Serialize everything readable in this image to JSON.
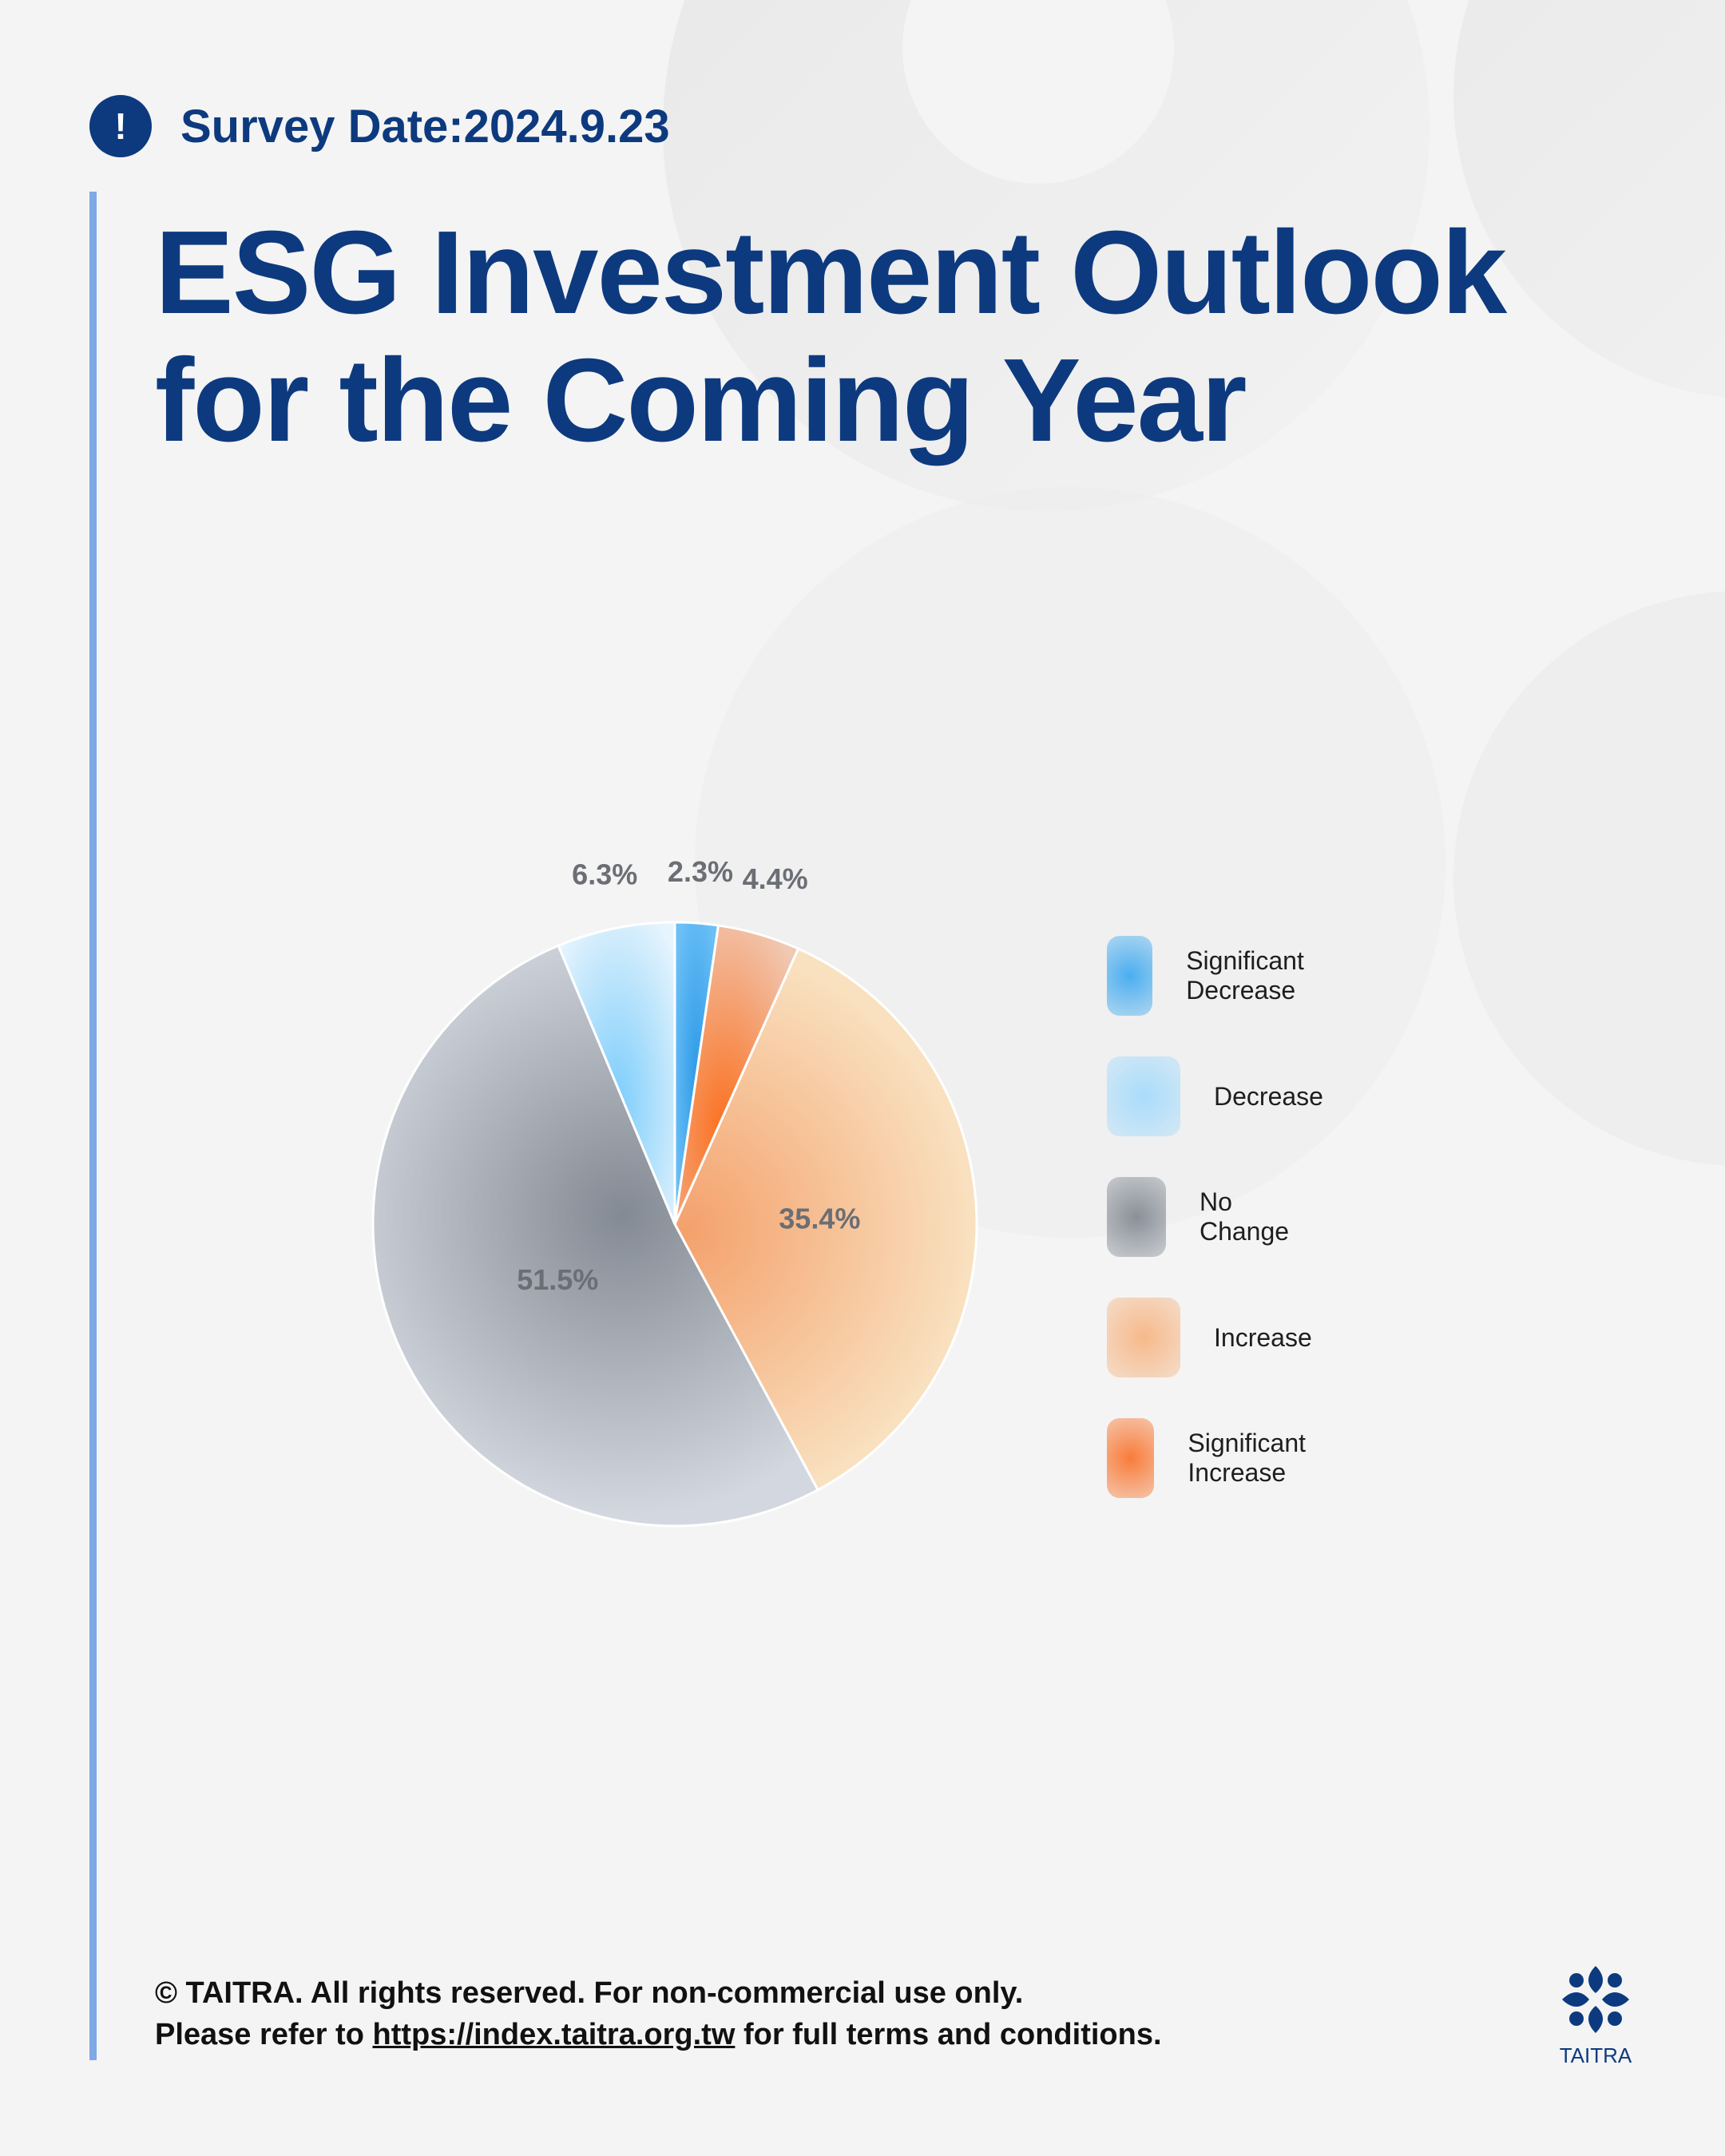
{
  "header": {
    "alert_icon": "!",
    "survey_date": "Survey Date:2024.9.23",
    "title_line1": "ESG Investment Outlook",
    "title_line2": "for the Coming Year"
  },
  "chart_data": {
    "type": "pie",
    "categories": [
      "Significant Decrease",
      "Decrease",
      "No Change",
      "Increase",
      "Significant Increase"
    ],
    "values": [
      2.3,
      6.3,
      51.5,
      35.4,
      4.4
    ],
    "value_labels": [
      "2.3%",
      "6.3%",
      "51.5%",
      "35.4%",
      "4.4%"
    ],
    "legend_position": "right",
    "colors": [
      "#4aaef0",
      "#a9dcfb",
      "#8a9099",
      "#f6b98a",
      "#f87c3a"
    ]
  },
  "footer": {
    "line1": "© TAITRA. All rights reserved. For non-commercial use only.",
    "line2_prefix": "Please refer to ",
    "link_text": "https://index.taitra.org.tw",
    "line2_suffix": " for full terms and conditions."
  },
  "logo": {
    "text": "TAITRA",
    "icon": "taitra-logo-icon"
  }
}
